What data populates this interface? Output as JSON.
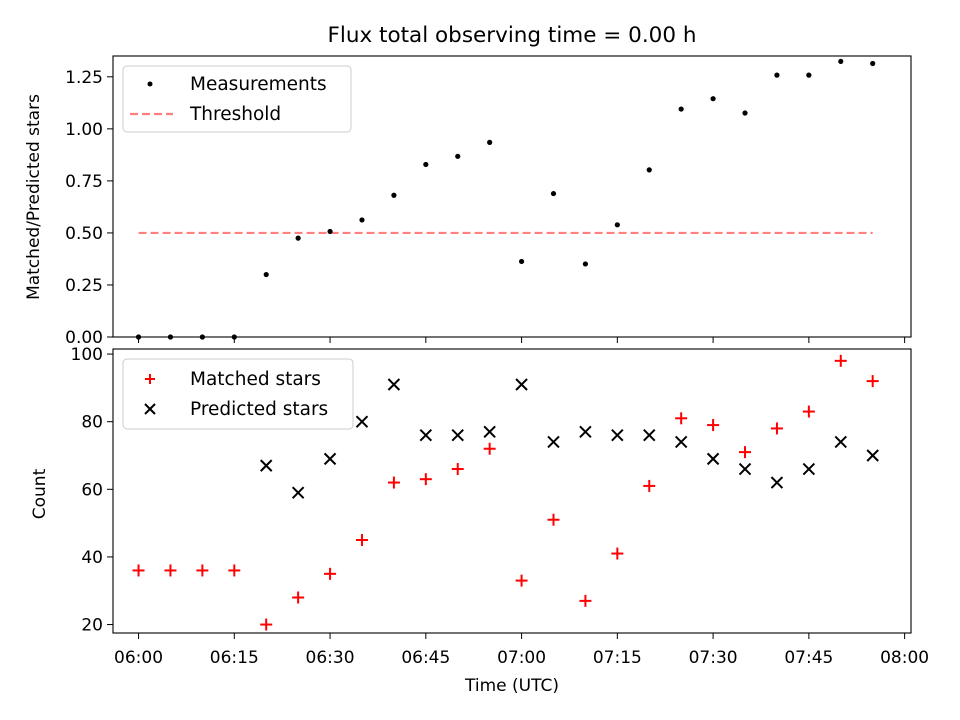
{
  "chart_data": [
    {
      "type": "scatter",
      "title": "Flux total observing time = 0.00 h",
      "xlabel": "",
      "ylabel": "Matched/Predicted stars",
      "ylim": [
        0,
        1.35
      ],
      "yticks": [
        "0.00",
        "0.25",
        "0.50",
        "0.75",
        "1.00",
        "1.25"
      ],
      "ytick_values": [
        0,
        0.25,
        0.5,
        0.75,
        1.0,
        1.25
      ],
      "x": [
        "06:00",
        "06:05",
        "06:10",
        "06:15",
        "06:20",
        "06:25",
        "06:30",
        "06:35",
        "06:40",
        "06:45",
        "06:50",
        "06:55",
        "07:00",
        "07:05",
        "07:10",
        "07:15",
        "07:20",
        "07:25",
        "07:30",
        "07:35",
        "07:40",
        "07:45",
        "07:50",
        "07:55"
      ],
      "series": [
        {
          "name": "Measurements",
          "marker": "dot",
          "color": "#000000",
          "values": [
            0,
            0,
            0,
            0,
            0.3,
            0.475,
            0.507,
            0.5625,
            0.681,
            0.829,
            0.868,
            0.935,
            0.363,
            0.689,
            0.351,
            0.539,
            0.803,
            1.095,
            1.145,
            1.076,
            1.258,
            1.258,
            1.324,
            1.314
          ]
        },
        {
          "name": "Threshold",
          "marker": "dashed-line",
          "color": "#ff7f7f",
          "x": [
            "06:00",
            "07:55"
          ],
          "values": [
            0.5,
            0.5
          ]
        }
      ],
      "legend": "upper-left",
      "grid": false
    },
    {
      "type": "scatter",
      "xlabel": "Time (UTC)",
      "ylabel": "Count",
      "ylim": [
        17.5,
        101.5
      ],
      "yticks": [
        "20",
        "40",
        "60",
        "80",
        "100"
      ],
      "ytick_values": [
        20,
        40,
        60,
        80,
        100
      ],
      "xticks": [
        "06:00",
        "06:15",
        "06:30",
        "06:45",
        "07:00",
        "07:15",
        "07:30",
        "07:45",
        "08:00"
      ],
      "xlim": [
        "05:56",
        "08:01"
      ],
      "x": [
        "06:00",
        "06:05",
        "06:10",
        "06:15",
        "06:20",
        "06:25",
        "06:30",
        "06:35",
        "06:40",
        "06:45",
        "06:50",
        "06:55",
        "07:00",
        "07:05",
        "07:10",
        "07:15",
        "07:20",
        "07:25",
        "07:30",
        "07:35",
        "07:40",
        "07:45",
        "07:50",
        "07:55"
      ],
      "series": [
        {
          "name": "Matched stars",
          "marker": "plus",
          "color": "#ff0000",
          "values": [
            36,
            36,
            36,
            36,
            20,
            28,
            35,
            45,
            62,
            63,
            66,
            72,
            33,
            51,
            27,
            41,
            61,
            81,
            79,
            71,
            78,
            83,
            98,
            92
          ]
        },
        {
          "name": "Predicted stars",
          "marker": "x",
          "color": "#000000",
          "x": [
            "06:20",
            "06:25",
            "06:30",
            "06:35",
            "06:40",
            "06:45",
            "06:50",
            "06:55",
            "07:00",
            "07:05",
            "07:10",
            "07:15",
            "07:20",
            "07:25",
            "07:30",
            "07:35",
            "07:40",
            "07:45",
            "07:50",
            "07:55"
          ],
          "values": [
            67,
            59,
            69,
            80,
            91,
            76,
            76,
            77,
            91,
            74,
            77,
            76,
            76,
            74,
            69,
            66,
            62,
            66,
            74,
            70
          ]
        }
      ],
      "legend": "upper-left",
      "grid": false
    }
  ]
}
